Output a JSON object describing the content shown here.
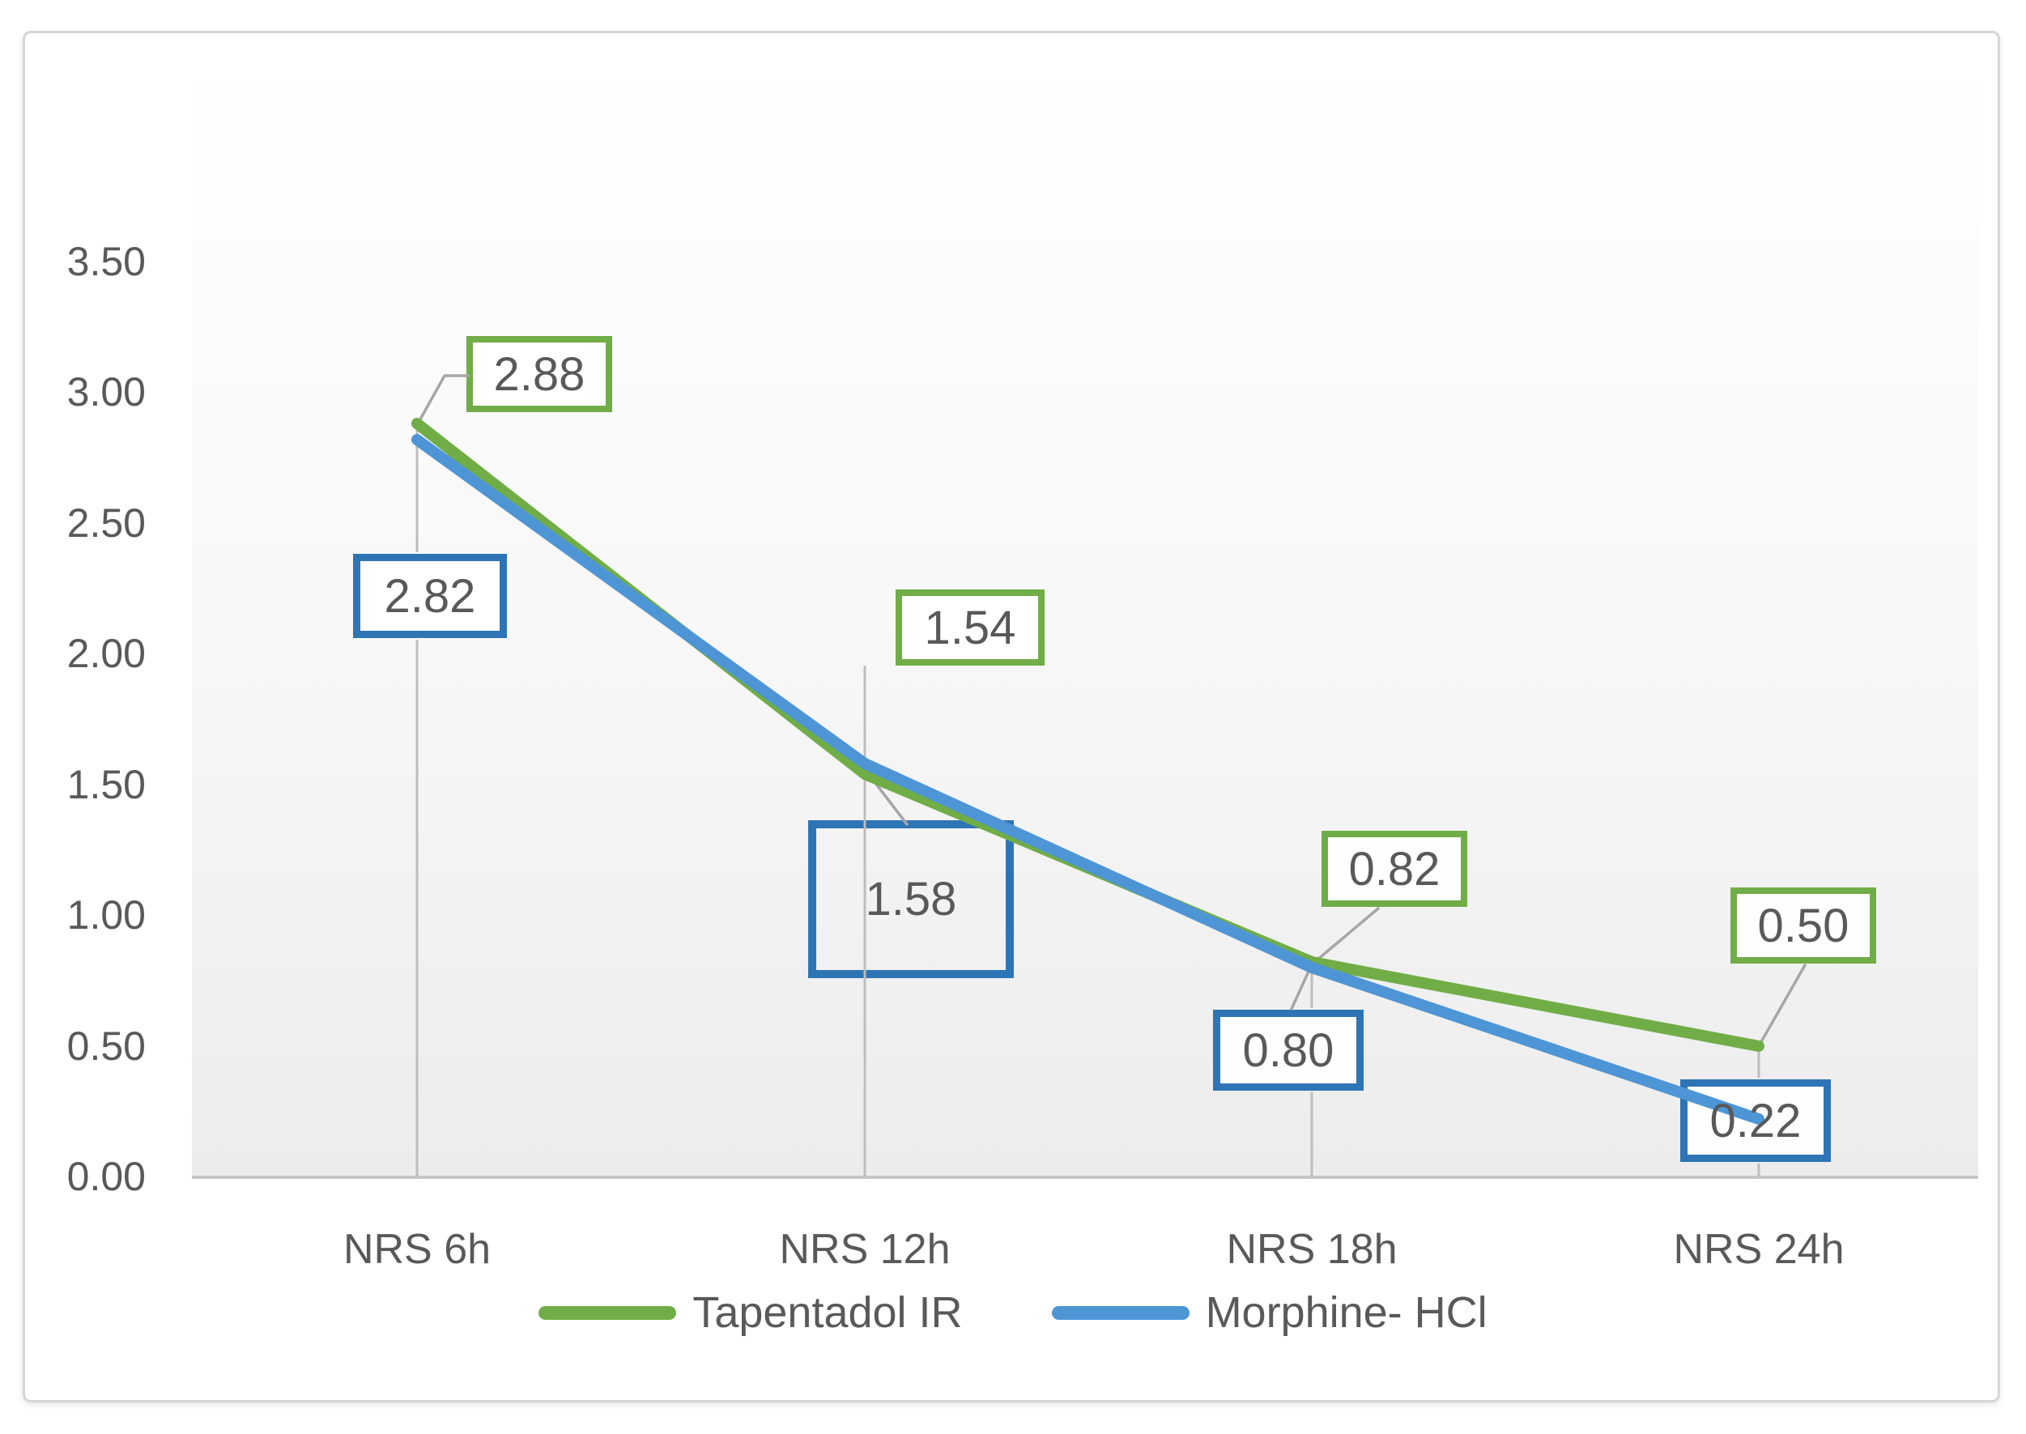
{
  "chart_data": {
    "type": "line",
    "title": "",
    "categories": [
      "NRS 6h",
      "NRS 12h",
      "NRS 18h",
      "NRS 24h"
    ],
    "series": [
      {
        "name": "Tapentadol IR",
        "color": "#70AD47",
        "label_box_border_color": "#70AD47",
        "values": [
          2.88,
          1.54,
          0.82,
          0.5
        ],
        "data_labels": [
          "2.88",
          "1.54",
          "0.82",
          "0.50"
        ]
      },
      {
        "name": "Morphine- HCl",
        "color": "#4E95D5",
        "label_box_border_color": "#2E75B6",
        "values": [
          2.82,
          1.58,
          0.8,
          0.22
        ],
        "data_labels": [
          "2.82",
          "1.58",
          "0.80",
          "0.22"
        ]
      }
    ],
    "y_tick_labels": [
      "3.50",
      "3.00",
      "2.50",
      "2.00",
      "1.50",
      "1.00",
      "0.50",
      "0.00"
    ],
    "ylim": [
      0,
      3.5
    ],
    "y_tick_step": 0.5,
    "grid": "off",
    "legend_position": "bottom",
    "data_label_style": "boxed-callouts"
  },
  "colors": {
    "text": "#595959",
    "axis_line": "#c6c6c6",
    "leader_line": "#a6a6a6",
    "drop_line": "#bdbdbd",
    "chart_border": "#d6d6d6",
    "plot_gradient_top": "#ffffff",
    "plot_gradient_bottom": "#ececec",
    "label_box_fill": "#ffffff"
  }
}
